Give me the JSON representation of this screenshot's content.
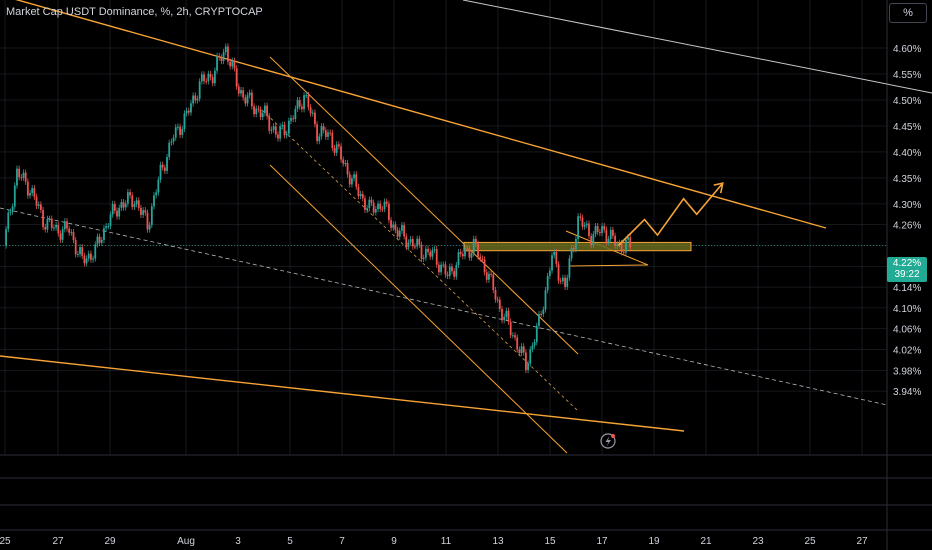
{
  "header": {
    "title": "Market Cap USDT Dominance, %, 2h, CRYPTOCAP"
  },
  "toolbar": {
    "unit_label": "%"
  },
  "price_tag": {
    "value": "4.22%",
    "countdown": "39:22"
  },
  "colors": {
    "up": "#26a69a",
    "down": "#ef5350",
    "trendline": "#f7a335",
    "zone_fill": "#6b6b1e",
    "grid": "#2a2e39",
    "background": "#000000"
  },
  "chart_data": {
    "type": "candlestick",
    "title": "Market Cap USDT Dominance, %, 2h, CRYPTOCAP",
    "xlabel": "",
    "ylabel": "",
    "x_ticks": [
      "25",
      "27",
      "29",
      "Aug",
      "3",
      "5",
      "7",
      "9",
      "11",
      "13",
      "15",
      "17",
      "19",
      "21",
      "23",
      "25",
      "27"
    ],
    "y_ticks": [
      "4.60%",
      "4.55%",
      "4.50%",
      "4.45%",
      "4.40%",
      "4.35%",
      "4.30%",
      "4.26%",
      "4.22%",
      "4.18%",
      "4.14%",
      "4.10%",
      "4.06%",
      "4.02%",
      "3.98%",
      "3.94%"
    ],
    "ylim": [
      3.935,
      4.625
    ],
    "last_price": 4.22,
    "series": [
      {
        "values": [
          {
            "x": "Jul 25",
            "v": 4.22
          },
          {
            "x": "Jul 25 12h",
            "v": 4.36
          },
          {
            "x": "Jul 26",
            "v": 4.33
          },
          {
            "x": "Jul 26 12h",
            "v": 4.27
          },
          {
            "x": "Jul 27",
            "v": 4.25
          },
          {
            "x": "Jul 27 12h",
            "v": 4.25
          },
          {
            "x": "Jul 28",
            "v": 4.19
          },
          {
            "x": "Jul 28 12h",
            "v": 4.21
          },
          {
            "x": "Jul 29",
            "v": 4.27
          },
          {
            "x": "Jul 29 12h",
            "v": 4.3
          },
          {
            "x": "Jul 30",
            "v": 4.31
          },
          {
            "x": "Jul 30 12h",
            "v": 4.26
          },
          {
            "x": "Jul 31",
            "v": 4.36
          },
          {
            "x": "Jul 31 12h",
            "v": 4.43
          },
          {
            "x": "Aug 1",
            "v": 4.47
          },
          {
            "x": "Aug 1 12h",
            "v": 4.53
          },
          {
            "x": "Aug 2",
            "v": 4.55
          },
          {
            "x": "Aug 2 12h",
            "v": 4.6
          },
          {
            "x": "Aug 3",
            "v": 4.52
          },
          {
            "x": "Aug 3 12h",
            "v": 4.49
          },
          {
            "x": "Aug 4",
            "v": 4.47
          },
          {
            "x": "Aug 4 12h",
            "v": 4.43
          },
          {
            "x": "Aug 5",
            "v": 4.46
          },
          {
            "x": "Aug 5 12h",
            "v": 4.51
          },
          {
            "x": "Aug 6",
            "v": 4.44
          },
          {
            "x": "Aug 6 12h",
            "v": 4.43
          },
          {
            "x": "Aug 7",
            "v": 4.38
          },
          {
            "x": "Aug 7 12h",
            "v": 4.33
          },
          {
            "x": "Aug 8",
            "v": 4.29
          },
          {
            "x": "Aug 8 12h",
            "v": 4.3
          },
          {
            "x": "Aug 9",
            "v": 4.25
          },
          {
            "x": "Aug 9 12h",
            "v": 4.23
          },
          {
            "x": "Aug 10",
            "v": 4.21
          },
          {
            "x": "Aug 10 12h",
            "v": 4.2
          },
          {
            "x": "Aug 11",
            "v": 4.16
          },
          {
            "x": "Aug 11 12h",
            "v": 4.2
          },
          {
            "x": "Aug 12",
            "v": 4.22
          },
          {
            "x": "Aug 12 12h",
            "v": 4.17
          },
          {
            "x": "Aug 13",
            "v": 4.1
          },
          {
            "x": "Aug 13 12h",
            "v": 4.05
          },
          {
            "x": "Aug 14",
            "v": 3.99
          },
          {
            "x": "Aug 14 12h",
            "v": 4.07
          },
          {
            "x": "Aug 15",
            "v": 4.2
          },
          {
            "x": "Aug 15 12h",
            "v": 4.14
          },
          {
            "x": "Aug 16",
            "v": 4.27
          },
          {
            "x": "Aug 16 12h",
            "v": 4.24
          },
          {
            "x": "Aug 17",
            "v": 4.25
          },
          {
            "x": "Aug 17 12h",
            "v": 4.22
          }
        ]
      }
    ],
    "annotations": {
      "support_zone": [
        4.21,
        4.226
      ],
      "projected_path": [
        {
          "x": "Aug 17 12h",
          "v": 4.22
        },
        {
          "x": "Aug 18 12h",
          "v": 4.27
        },
        {
          "x": "Aug 19",
          "v": 4.24
        },
        {
          "x": "Aug 20",
          "v": 4.31
        },
        {
          "x": "Aug 20 12h",
          "v": 4.28
        },
        {
          "x": "Aug 21 12h",
          "v": 4.34
        }
      ]
    }
  }
}
